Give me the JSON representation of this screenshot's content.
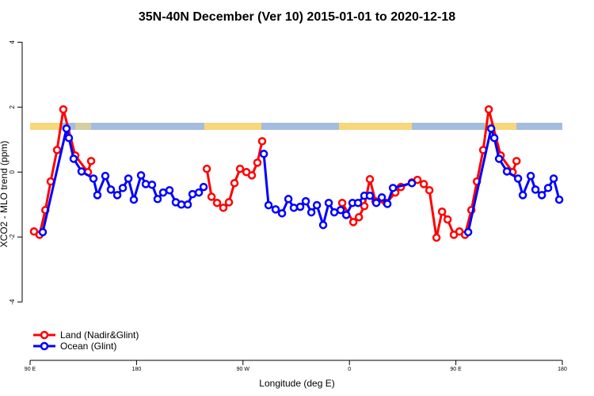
{
  "chart_data": {
    "type": "line",
    "title": "35N-40N December (Ver 10)   2015-01-01 to 2020-12-18",
    "xlabel": "Longitude (deg E)",
    "ylabel": "XCO2 - MLO trend (ppm)",
    "xlim": [
      90,
      540
    ],
    "xticks": [
      {
        "value": 90,
        "label": "90 E"
      },
      {
        "value": 180,
        "label": "180"
      },
      {
        "value": 270,
        "label": "90 W"
      },
      {
        "value": 360,
        "label": "0"
      },
      {
        "value": 450,
        "label": "90 E"
      },
      {
        "value": 540,
        "label": "180"
      }
    ],
    "ylim": [
      -5.8,
      4.3
    ],
    "yticks": [
      -4,
      -2,
      0,
      2,
      4
    ],
    "legend": "bottom-left",
    "series": [
      {
        "name": "Land (Nadir&Glint)",
        "color": "#ff0000",
        "x": [
          93.3,
          98,
          102.9,
          107.4,
          112.8,
          118.1,
          128.2,
          138.9,
          141.6,
          null,
          239.4,
          243.4,
          248.1,
          253.4,
          258.1,
          262.8,
          267.5,
          272.9,
          277.5,
          282.2,
          286.2,
          null,
          353.9,
          363.3,
          368,
          372.6,
          377.3,
          382,
          391.4,
          398.8,
          403.5,
          412.8,
          417.5,
          422.9,
          427.6,
          433.6,
          438.3,
          443,
          448.3,
          453,
          457.7,
          463.1,
          467.8,
          473.1,
          477.8,
          487.9,
          498,
          501.3
        ],
        "values": [
          -1.83,
          -1.93,
          -1.17,
          -0.29,
          0.68,
          1.93,
          0.51,
          0.0,
          0.34,
          null,
          0.1,
          -0.76,
          -0.95,
          -1.1,
          -0.93,
          -0.34,
          0.1,
          0.0,
          -0.1,
          0.29,
          0.95,
          null,
          -0.95,
          -1.54,
          -1.39,
          -1.05,
          -0.22,
          -0.9,
          -0.95,
          -0.63,
          -0.46,
          -0.32,
          -0.24,
          -0.37,
          -0.56,
          -2.02,
          -1.22,
          -1.46,
          -1.93,
          -1.83,
          -1.93,
          -1.17,
          -0.29,
          0.68,
          1.93,
          0.51,
          0.0,
          0.34
        ]
      },
      {
        "name": "Ocean (Glint)",
        "color": "#0000ff",
        "x": [
          100.7,
          120.8,
          122.8,
          126.8,
          133.5,
          143.6,
          146.9,
          153.6,
          158.3,
          163.7,
          168.4,
          173.1,
          177.7,
          183.8,
          187.8,
          193.1,
          197.8,
          202.5,
          207.9,
          213.2,
          217.9,
          223.3,
          227.3,
          232.7,
          236.7,
          null,
          287.6,
          291.6,
          297.6,
          303,
          308.4,
          313,
          318.4,
          323.1,
          327.8,
          332.5,
          337.8,
          342.5,
          347.2,
          352.6,
          357.3,
          362.6,
          367.3,
          372.6,
          377.3,
          382.7,
          387.4,
          392.1,
          396.8,
          412.8,
          null,
          460.4,
          479.8,
          482.5,
          486.5,
          493.2,
          502.6,
          506.6,
          513.3,
          517.3,
          522.7,
          528,
          532.7,
          537.4
        ],
        "values": [
          -1.85,
          1.34,
          1.05,
          0.41,
          0.02,
          -0.2,
          -0.71,
          -0.12,
          -0.54,
          -0.71,
          -0.49,
          -0.2,
          -0.85,
          -0.1,
          -0.37,
          -0.39,
          -0.83,
          -0.63,
          -0.56,
          -0.93,
          -1.0,
          -1.0,
          -0.68,
          -0.63,
          -0.46,
          null,
          0.56,
          -1.02,
          -1.15,
          -1.27,
          -0.83,
          -1.1,
          -1.07,
          -0.9,
          -1.24,
          -1.02,
          -1.63,
          -0.95,
          -1.24,
          -1.17,
          -1.32,
          -0.95,
          -0.95,
          -0.73,
          -0.73,
          -0.95,
          -0.78,
          -0.98,
          -0.49,
          -0.34,
          null,
          -1.85,
          1.34,
          1.05,
          0.41,
          0.02,
          -0.2,
          -0.71,
          -0.12,
          -0.54,
          -0.71,
          -0.49,
          -0.2,
          -0.85
        ]
      }
    ]
  }
}
